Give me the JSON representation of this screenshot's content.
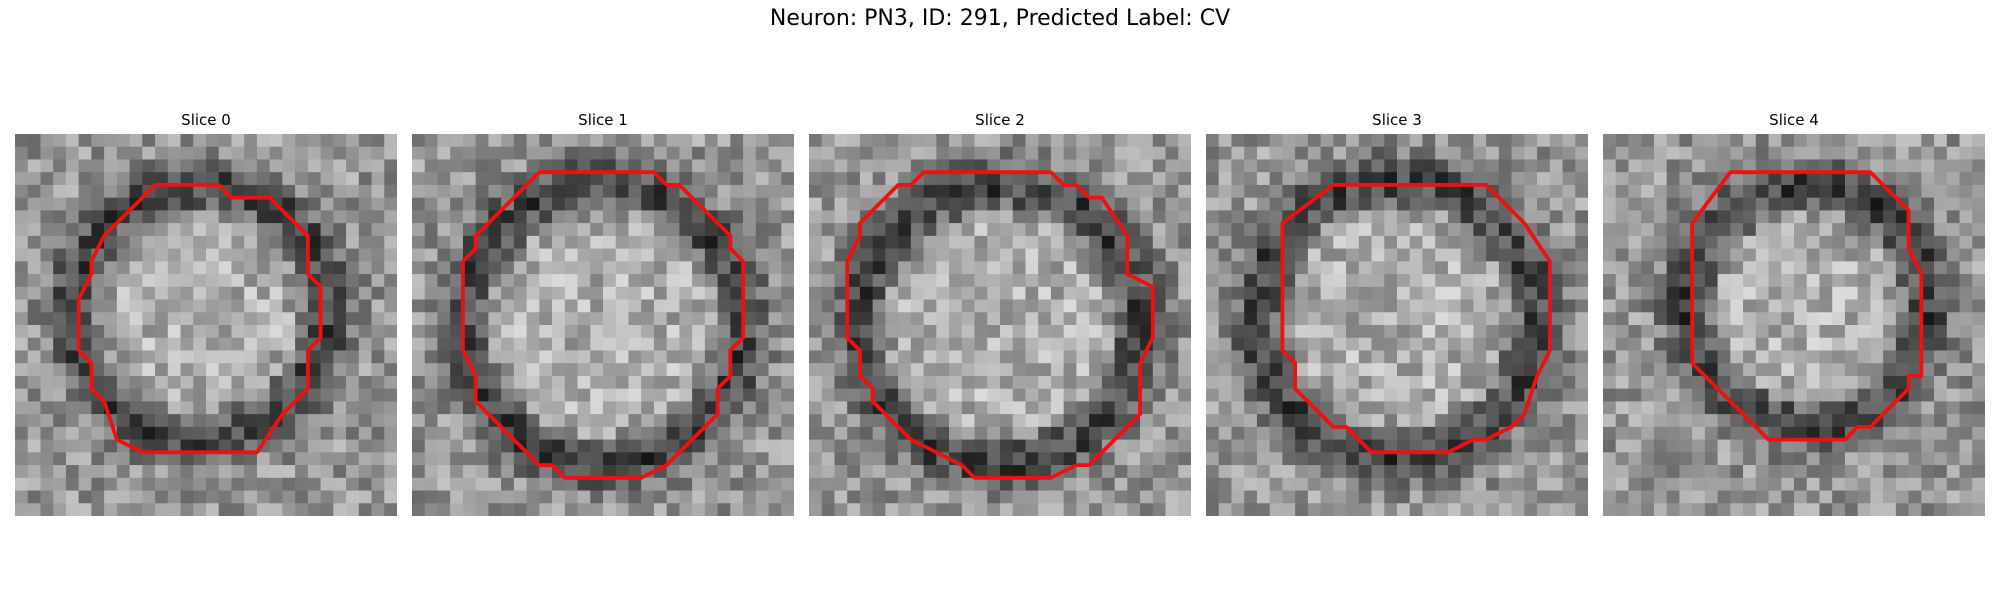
{
  "figure": {
    "title": "Neuron: PN3, ID: 291, Predicted Label: CV"
  },
  "panels": [
    {
      "title": "Slice 0"
    },
    {
      "title": "Slice 1"
    },
    {
      "title": "Slice 2"
    },
    {
      "title": "Slice 3"
    },
    {
      "title": "Slice 4"
    }
  ],
  "colors": {
    "contour": "#ee1111",
    "background": "#ffffff"
  }
}
